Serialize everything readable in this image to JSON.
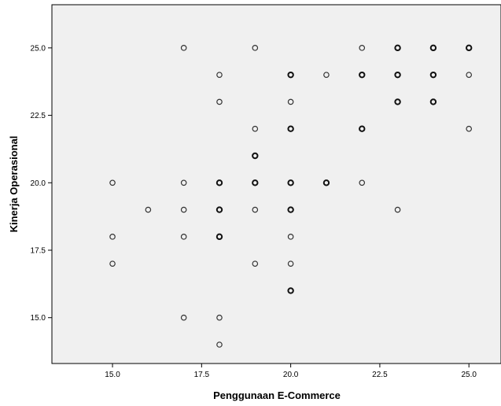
{
  "chart_data": {
    "type": "scatter",
    "xlabel": "Penggunaan E-Commerce",
    "ylabel": "Kinerja Operasional",
    "xlim": [
      13.3,
      25.9
    ],
    "ylim": [
      13.3,
      26.6
    ],
    "x_ticks": [
      "15.0",
      "17.5",
      "20.0",
      "22.5",
      "25.0"
    ],
    "y_ticks": [
      "15.0",
      "17.5",
      "20.0",
      "22.5",
      "25.0"
    ],
    "grid": false,
    "legend": "none",
    "plot_background": "#f0f0f0",
    "marker": "open-circle",
    "points": [
      {
        "x": 17,
        "y": 25,
        "multiple": false
      },
      {
        "x": 19,
        "y": 25,
        "multiple": false
      },
      {
        "x": 22,
        "y": 25,
        "multiple": false
      },
      {
        "x": 23,
        "y": 25,
        "multiple": true
      },
      {
        "x": 24,
        "y": 25,
        "multiple": true
      },
      {
        "x": 25,
        "y": 25,
        "multiple": true
      },
      {
        "x": 18,
        "y": 24,
        "multiple": false
      },
      {
        "x": 20,
        "y": 24,
        "multiple": true
      },
      {
        "x": 21,
        "y": 24,
        "multiple": false
      },
      {
        "x": 22,
        "y": 24,
        "multiple": true
      },
      {
        "x": 23,
        "y": 24,
        "multiple": true
      },
      {
        "x": 24,
        "y": 24,
        "multiple": true
      },
      {
        "x": 25,
        "y": 24,
        "multiple": false
      },
      {
        "x": 18,
        "y": 23,
        "multiple": false
      },
      {
        "x": 20,
        "y": 23,
        "multiple": false
      },
      {
        "x": 23,
        "y": 23,
        "multiple": true
      },
      {
        "x": 24,
        "y": 23,
        "multiple": true
      },
      {
        "x": 19,
        "y": 22,
        "multiple": false
      },
      {
        "x": 20,
        "y": 22,
        "multiple": true
      },
      {
        "x": 22,
        "y": 22,
        "multiple": true
      },
      {
        "x": 25,
        "y": 22,
        "multiple": false
      },
      {
        "x": 19,
        "y": 21,
        "multiple": true
      },
      {
        "x": 15,
        "y": 20,
        "multiple": false
      },
      {
        "x": 17,
        "y": 20,
        "multiple": false
      },
      {
        "x": 18,
        "y": 20,
        "multiple": true
      },
      {
        "x": 19,
        "y": 20,
        "multiple": true
      },
      {
        "x": 20,
        "y": 20,
        "multiple": true
      },
      {
        "x": 21,
        "y": 20,
        "multiple": true
      },
      {
        "x": 22,
        "y": 20,
        "multiple": false
      },
      {
        "x": 16,
        "y": 19,
        "multiple": false
      },
      {
        "x": 17,
        "y": 19,
        "multiple": false
      },
      {
        "x": 18,
        "y": 19,
        "multiple": true
      },
      {
        "x": 19,
        "y": 19,
        "multiple": false
      },
      {
        "x": 20,
        "y": 19,
        "multiple": true
      },
      {
        "x": 23,
        "y": 19,
        "multiple": false
      },
      {
        "x": 15,
        "y": 18,
        "multiple": false
      },
      {
        "x": 17,
        "y": 18,
        "multiple": false
      },
      {
        "x": 18,
        "y": 18,
        "multiple": true
      },
      {
        "x": 20,
        "y": 18,
        "multiple": false
      },
      {
        "x": 15,
        "y": 17,
        "multiple": false
      },
      {
        "x": 19,
        "y": 17,
        "multiple": false
      },
      {
        "x": 20,
        "y": 17,
        "multiple": false
      },
      {
        "x": 20,
        "y": 16,
        "multiple": true
      },
      {
        "x": 17,
        "y": 15,
        "multiple": false
      },
      {
        "x": 18,
        "y": 15,
        "multiple": false
      },
      {
        "x": 18,
        "y": 14,
        "multiple": false
      }
    ]
  }
}
